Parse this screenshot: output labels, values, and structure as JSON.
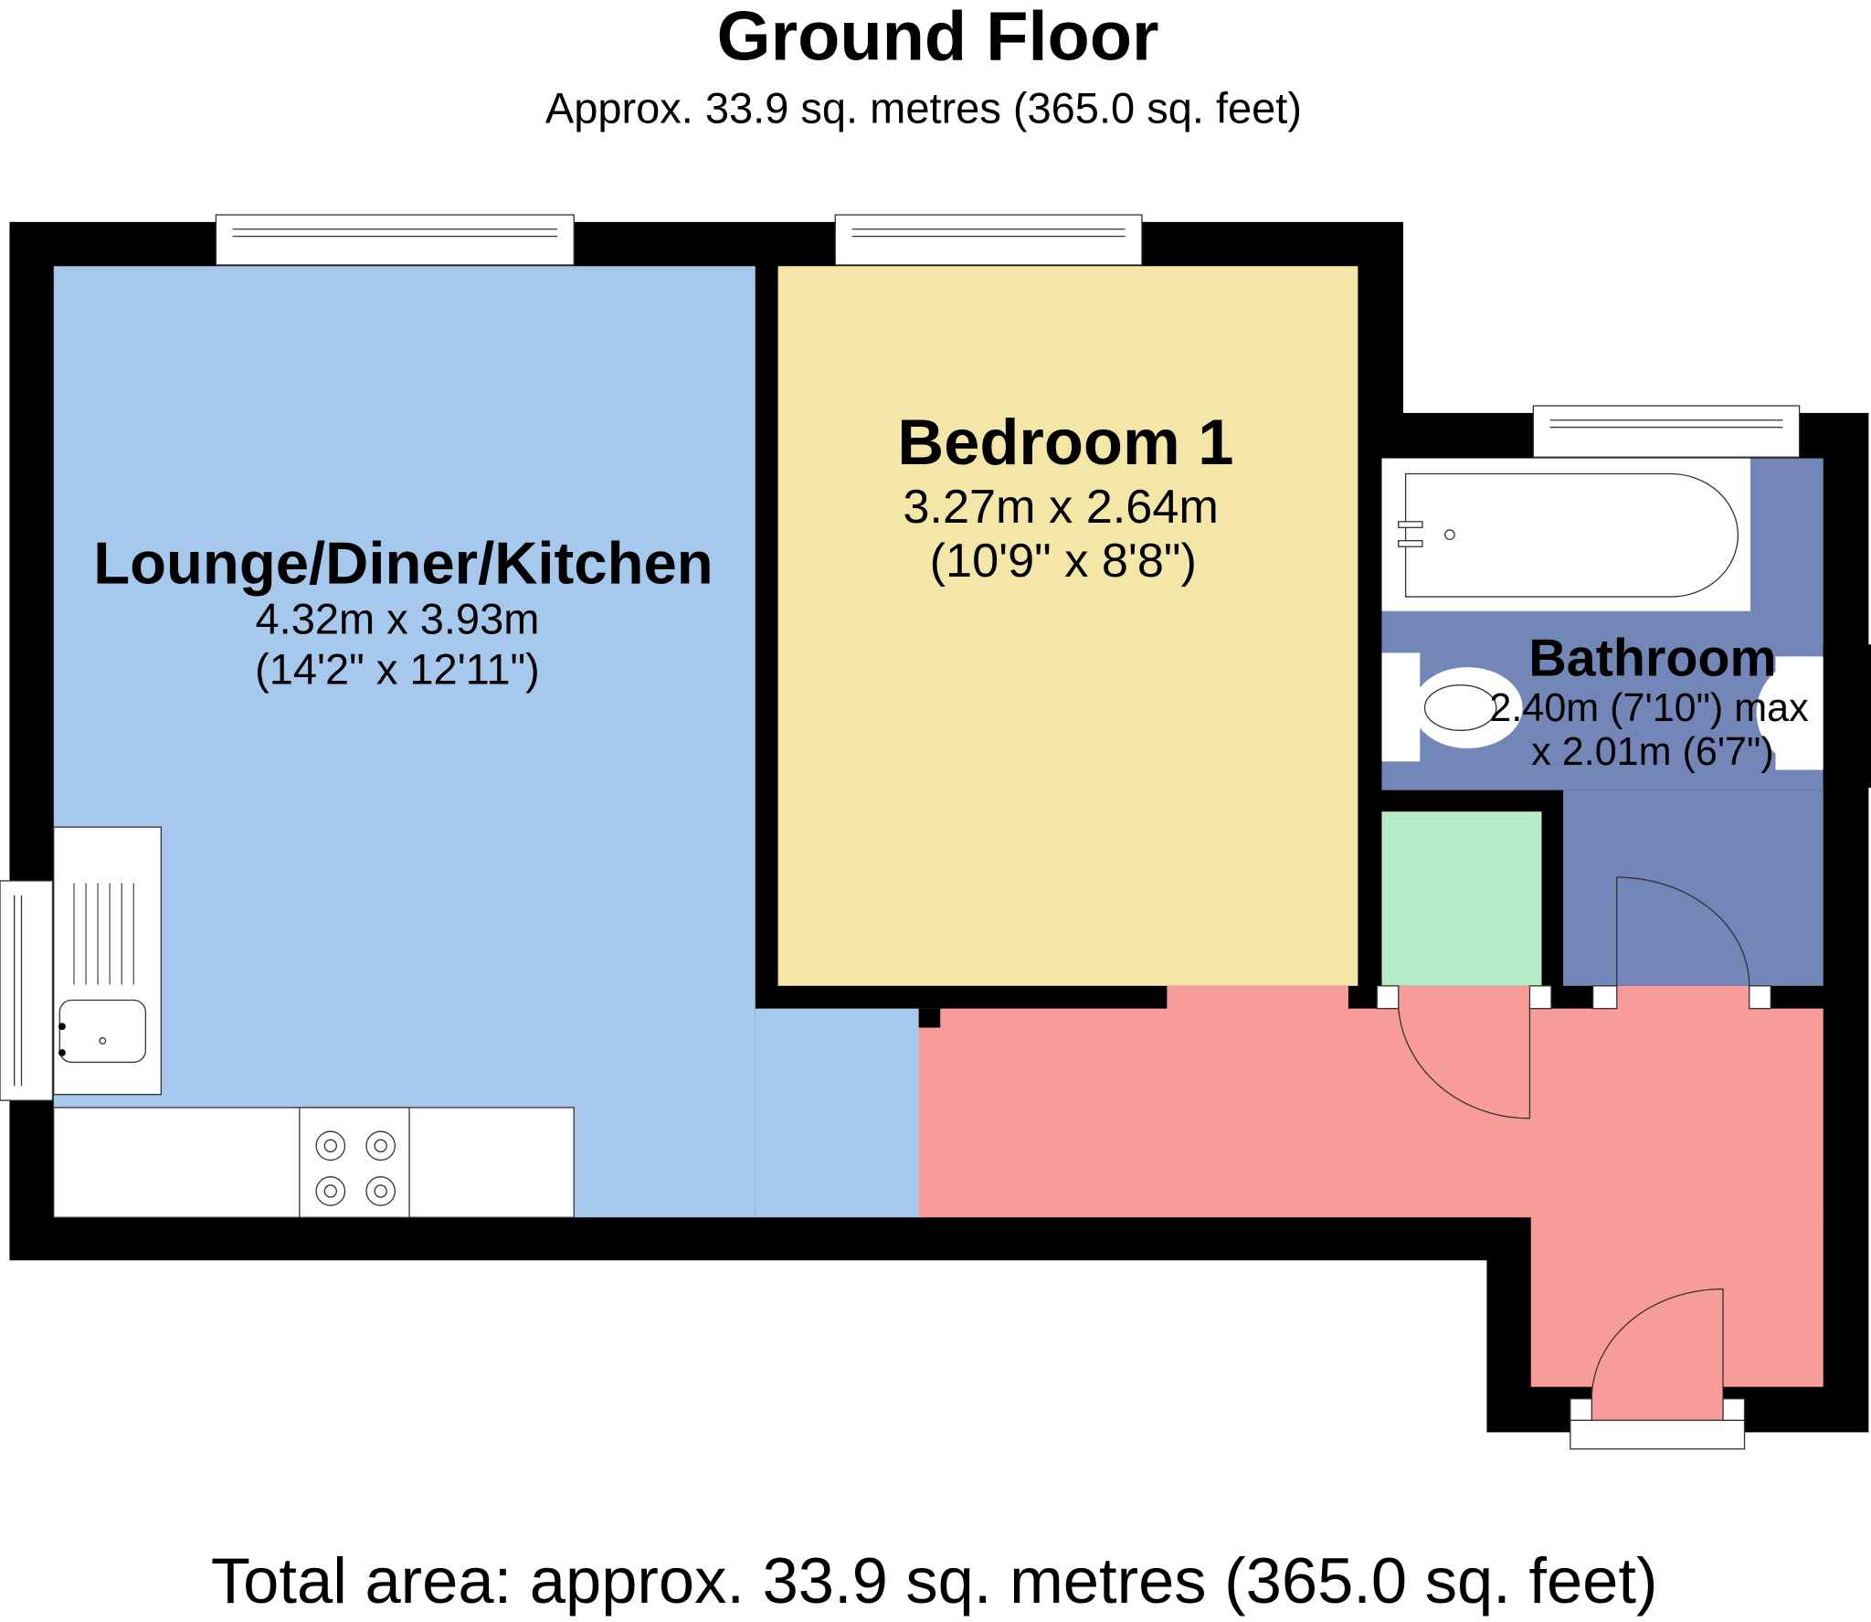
{
  "header": {
    "title": "Ground Floor",
    "subtitle": "Approx. 33.9 sq. metres (365.0 sq. feet)"
  },
  "rooms": [
    {
      "name": "Lounge/Diner/Kitchen",
      "size_m": "4.32m x 3.93m",
      "size_ft": "(14'2\" x 12'11\")",
      "color": "#a6c8ec"
    },
    {
      "name": "Bedroom 1",
      "size_m": "3.27m x 2.64m",
      "size_ft": "(10'9\" x 8'8\")",
      "color": "#f4e6a7"
    },
    {
      "name": "Bathroom",
      "size_m": "2.40m (7'10\") max",
      "size_ft": "x 2.01m (6'7\")",
      "color": "#7286b8"
    }
  ],
  "colors": {
    "hall": "#f89c9a",
    "cupboard": "#b8ecc8",
    "wall": "#000000"
  },
  "footer": {
    "total": "Total area: approx. 33.9 sq. metres (365.0 sq. feet)"
  }
}
